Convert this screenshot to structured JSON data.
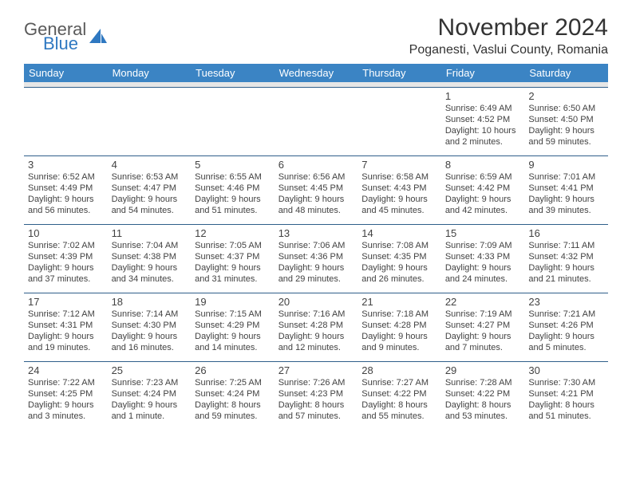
{
  "brand": {
    "line1": "General",
    "line2": "Blue"
  },
  "title": "November 2024",
  "location": "Poganesti, Vaslui County, Romania",
  "colors": {
    "header_bg": "#3b84c4",
    "header_text": "#ffffff",
    "row_border": "#2f5f8a",
    "spacer_bg": "#e6e6e6",
    "text": "#424242",
    "logo_gray": "#5a5a5a",
    "logo_blue": "#2f78c1"
  },
  "dow": [
    "Sunday",
    "Monday",
    "Tuesday",
    "Wednesday",
    "Thursday",
    "Friday",
    "Saturday"
  ],
  "weeks": [
    [
      null,
      null,
      null,
      null,
      null,
      {
        "n": "1",
        "sunrise": "Sunrise: 6:49 AM",
        "sunset": "Sunset: 4:52 PM",
        "day1": "Daylight: 10 hours",
        "day2": "and 2 minutes."
      },
      {
        "n": "2",
        "sunrise": "Sunrise: 6:50 AM",
        "sunset": "Sunset: 4:50 PM",
        "day1": "Daylight: 9 hours",
        "day2": "and 59 minutes."
      }
    ],
    [
      {
        "n": "3",
        "sunrise": "Sunrise: 6:52 AM",
        "sunset": "Sunset: 4:49 PM",
        "day1": "Daylight: 9 hours",
        "day2": "and 56 minutes."
      },
      {
        "n": "4",
        "sunrise": "Sunrise: 6:53 AM",
        "sunset": "Sunset: 4:47 PM",
        "day1": "Daylight: 9 hours",
        "day2": "and 54 minutes."
      },
      {
        "n": "5",
        "sunrise": "Sunrise: 6:55 AM",
        "sunset": "Sunset: 4:46 PM",
        "day1": "Daylight: 9 hours",
        "day2": "and 51 minutes."
      },
      {
        "n": "6",
        "sunrise": "Sunrise: 6:56 AM",
        "sunset": "Sunset: 4:45 PM",
        "day1": "Daylight: 9 hours",
        "day2": "and 48 minutes."
      },
      {
        "n": "7",
        "sunrise": "Sunrise: 6:58 AM",
        "sunset": "Sunset: 4:43 PM",
        "day1": "Daylight: 9 hours",
        "day2": "and 45 minutes."
      },
      {
        "n": "8",
        "sunrise": "Sunrise: 6:59 AM",
        "sunset": "Sunset: 4:42 PM",
        "day1": "Daylight: 9 hours",
        "day2": "and 42 minutes."
      },
      {
        "n": "9",
        "sunrise": "Sunrise: 7:01 AM",
        "sunset": "Sunset: 4:41 PM",
        "day1": "Daylight: 9 hours",
        "day2": "and 39 minutes."
      }
    ],
    [
      {
        "n": "10",
        "sunrise": "Sunrise: 7:02 AM",
        "sunset": "Sunset: 4:39 PM",
        "day1": "Daylight: 9 hours",
        "day2": "and 37 minutes."
      },
      {
        "n": "11",
        "sunrise": "Sunrise: 7:04 AM",
        "sunset": "Sunset: 4:38 PM",
        "day1": "Daylight: 9 hours",
        "day2": "and 34 minutes."
      },
      {
        "n": "12",
        "sunrise": "Sunrise: 7:05 AM",
        "sunset": "Sunset: 4:37 PM",
        "day1": "Daylight: 9 hours",
        "day2": "and 31 minutes."
      },
      {
        "n": "13",
        "sunrise": "Sunrise: 7:06 AM",
        "sunset": "Sunset: 4:36 PM",
        "day1": "Daylight: 9 hours",
        "day2": "and 29 minutes."
      },
      {
        "n": "14",
        "sunrise": "Sunrise: 7:08 AM",
        "sunset": "Sunset: 4:35 PM",
        "day1": "Daylight: 9 hours",
        "day2": "and 26 minutes."
      },
      {
        "n": "15",
        "sunrise": "Sunrise: 7:09 AM",
        "sunset": "Sunset: 4:33 PM",
        "day1": "Daylight: 9 hours",
        "day2": "and 24 minutes."
      },
      {
        "n": "16",
        "sunrise": "Sunrise: 7:11 AM",
        "sunset": "Sunset: 4:32 PM",
        "day1": "Daylight: 9 hours",
        "day2": "and 21 minutes."
      }
    ],
    [
      {
        "n": "17",
        "sunrise": "Sunrise: 7:12 AM",
        "sunset": "Sunset: 4:31 PM",
        "day1": "Daylight: 9 hours",
        "day2": "and 19 minutes."
      },
      {
        "n": "18",
        "sunrise": "Sunrise: 7:14 AM",
        "sunset": "Sunset: 4:30 PM",
        "day1": "Daylight: 9 hours",
        "day2": "and 16 minutes."
      },
      {
        "n": "19",
        "sunrise": "Sunrise: 7:15 AM",
        "sunset": "Sunset: 4:29 PM",
        "day1": "Daylight: 9 hours",
        "day2": "and 14 minutes."
      },
      {
        "n": "20",
        "sunrise": "Sunrise: 7:16 AM",
        "sunset": "Sunset: 4:28 PM",
        "day1": "Daylight: 9 hours",
        "day2": "and 12 minutes."
      },
      {
        "n": "21",
        "sunrise": "Sunrise: 7:18 AM",
        "sunset": "Sunset: 4:28 PM",
        "day1": "Daylight: 9 hours",
        "day2": "and 9 minutes."
      },
      {
        "n": "22",
        "sunrise": "Sunrise: 7:19 AM",
        "sunset": "Sunset: 4:27 PM",
        "day1": "Daylight: 9 hours",
        "day2": "and 7 minutes."
      },
      {
        "n": "23",
        "sunrise": "Sunrise: 7:21 AM",
        "sunset": "Sunset: 4:26 PM",
        "day1": "Daylight: 9 hours",
        "day2": "and 5 minutes."
      }
    ],
    [
      {
        "n": "24",
        "sunrise": "Sunrise: 7:22 AM",
        "sunset": "Sunset: 4:25 PM",
        "day1": "Daylight: 9 hours",
        "day2": "and 3 minutes."
      },
      {
        "n": "25",
        "sunrise": "Sunrise: 7:23 AM",
        "sunset": "Sunset: 4:24 PM",
        "day1": "Daylight: 9 hours",
        "day2": "and 1 minute."
      },
      {
        "n": "26",
        "sunrise": "Sunrise: 7:25 AM",
        "sunset": "Sunset: 4:24 PM",
        "day1": "Daylight: 8 hours",
        "day2": "and 59 minutes."
      },
      {
        "n": "27",
        "sunrise": "Sunrise: 7:26 AM",
        "sunset": "Sunset: 4:23 PM",
        "day1": "Daylight: 8 hours",
        "day2": "and 57 minutes."
      },
      {
        "n": "28",
        "sunrise": "Sunrise: 7:27 AM",
        "sunset": "Sunset: 4:22 PM",
        "day1": "Daylight: 8 hours",
        "day2": "and 55 minutes."
      },
      {
        "n": "29",
        "sunrise": "Sunrise: 7:28 AM",
        "sunset": "Sunset: 4:22 PM",
        "day1": "Daylight: 8 hours",
        "day2": "and 53 minutes."
      },
      {
        "n": "30",
        "sunrise": "Sunrise: 7:30 AM",
        "sunset": "Sunset: 4:21 PM",
        "day1": "Daylight: 8 hours",
        "day2": "and 51 minutes."
      }
    ]
  ]
}
